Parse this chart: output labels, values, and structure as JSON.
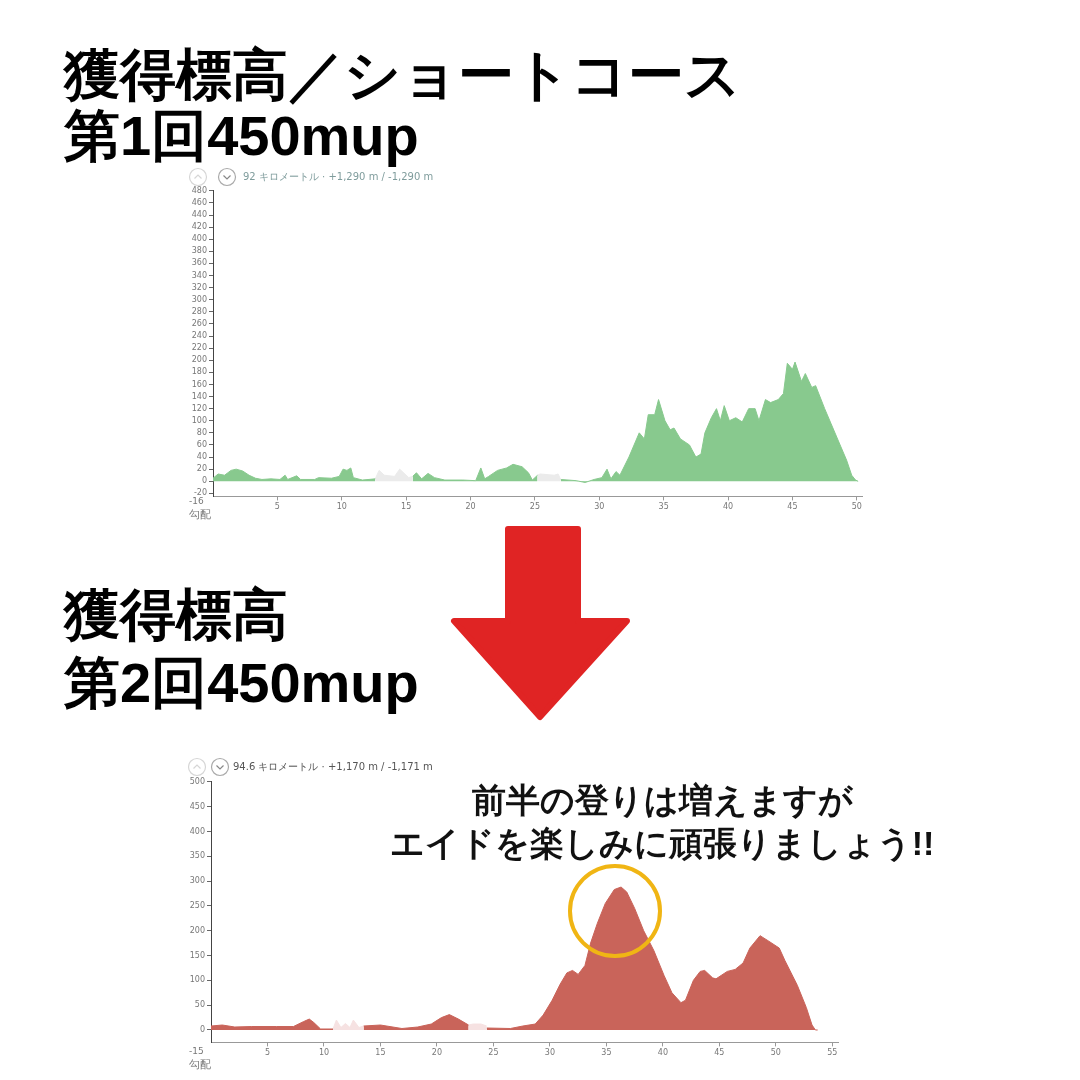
{
  "chart_data": [
    {
      "type": "area",
      "title": "獲得標高／ショートコース",
      "subtitle": "第1回450mup",
      "annotations": [
        "92 キロメートル · +1,290 m / -1,290 m",
        "-16",
        "勾配"
      ],
      "series": [
        {
          "color": "#88c98e",
          "x": [
            0,
            0.4,
            0.9,
            1.4,
            1.8,
            2.3,
            2.8,
            3.3,
            3.8,
            4.5,
            5.2,
            5.6,
            5.8,
            6.5,
            6.8,
            7.9,
            8.2,
            9.2,
            9.8,
            10.1,
            10.4,
            10.7,
            10.9,
            11.6,
            12.6
          ],
          "values": [
            5,
            12,
            10,
            18,
            20,
            17,
            10,
            5,
            3,
            4,
            3,
            10,
            3,
            9,
            3,
            3,
            6,
            5,
            8,
            20,
            18,
            22,
            6,
            2,
            4
          ]
        },
        {
          "color": "#ebebeb",
          "x": [
            12.6,
            12.9,
            13.3,
            14.1,
            14.5,
            15.2,
            15.5
          ],
          "values": [
            4,
            18,
            10,
            8,
            20,
            6,
            8
          ]
        },
        {
          "color": "#88c98e",
          "x": [
            15.5,
            15.8,
            16.2,
            16.7,
            17.2,
            18.0,
            19.4,
            20.4,
            20.8,
            21.1,
            21.4,
            22.1,
            22.8,
            23.3,
            24.0,
            24.5,
            24.8,
            25.2
          ],
          "values": [
            8,
            14,
            4,
            13,
            6,
            2,
            2,
            1,
            22,
            4,
            8,
            18,
            22,
            28,
            24,
            14,
            2,
            10
          ]
        },
        {
          "color": "#ebebeb",
          "x": [
            25.2,
            25.4,
            26.5,
            26.8,
            27.0
          ],
          "values": [
            10,
            12,
            10,
            12,
            3
          ]
        },
        {
          "color": "#88c98e",
          "x": [
            27.0,
            28.2,
            28.9,
            29.6,
            30.2,
            30.6,
            30.9,
            31.3,
            31.6,
            32.3,
            32.8,
            33.1,
            33.5,
            33.8,
            34.3,
            34.6,
            35.1,
            35.5,
            35.8,
            36.3,
            37.0,
            37.5,
            37.9,
            38.2,
            38.7,
            39.1,
            39.4,
            39.7,
            40.1,
            40.6,
            41.1,
            41.6,
            42.1,
            42.4,
            42.9,
            43.3,
            43.9,
            44.3,
            44.6,
            45.0,
            45.2,
            45.7,
            46.0,
            46.5,
            46.8,
            47.5,
            48.0,
            48.7,
            49.2,
            49.6,
            49.9,
            50.1
          ],
          "values": [
            3,
            1,
            -2,
            3,
            6,
            20,
            4,
            16,
            10,
            40,
            65,
            80,
            70,
            110,
            110,
            135,
            100,
            85,
            88,
            70,
            60,
            40,
            45,
            80,
            105,
            120,
            100,
            125,
            100,
            105,
            98,
            120,
            120,
            100,
            135,
            130,
            135,
            145,
            195,
            185,
            197,
            165,
            178,
            155,
            158,
            120,
            95,
            60,
            35,
            10,
            2,
            0
          ]
        }
      ],
      "xlim": [
        0,
        50.4
      ],
      "xticks": [
        5,
        10,
        15,
        20,
        25,
        30,
        35,
        40,
        45,
        50
      ],
      "ylim": [
        -25,
        480
      ],
      "yticks": [
        -20,
        0,
        20,
        40,
        60,
        80,
        100,
        120,
        140,
        160,
        180,
        200,
        220,
        240,
        260,
        280,
        300,
        320,
        340,
        360,
        380,
        400,
        420,
        440,
        460,
        480
      ],
      "grid": false,
      "legend": false
    },
    {
      "type": "area",
      "title": "獲得標高",
      "subtitle": "第2回450mup",
      "annotations": [
        "94.6 キロメートル · +1,170 m / -1,171 m",
        "前半の登りは増えますが",
        "エイドを楽しみに頑張りましょう!!",
        "-15",
        "勾配"
      ],
      "series": [
        {
          "color": "#c9645a",
          "x": [
            0,
            1.0,
            2.1,
            3.6,
            5.8,
            7.3,
            8.2,
            8.7,
            9.1,
            9.7,
            10.8
          ],
          "values": [
            8,
            10,
            6,
            7,
            7,
            7,
            17,
            22,
            15,
            2,
            2
          ]
        },
        {
          "color": "#f6e2e2",
          "x": [
            10.8,
            11.1,
            11.5,
            11.9,
            12.3,
            12.6,
            13.1,
            13.5
          ],
          "values": [
            2,
            20,
            5,
            13,
            5,
            20,
            5,
            8
          ]
        },
        {
          "color": "#c9645a",
          "x": [
            13.5,
            15.0,
            16.9,
            18.3,
            19.5,
            20.4,
            21.1,
            21.9,
            22.8
          ],
          "values": [
            8,
            10,
            3,
            6,
            12,
            25,
            31,
            22,
            10
          ]
        },
        {
          "color": "#f6e2e2",
          "x": [
            22.8,
            23.2,
            23.9,
            24.4
          ],
          "values": [
            10,
            12,
            12,
            8
          ]
        },
        {
          "color": "#c9645a",
          "x": [
            24.4,
            26.5,
            27.6,
            28.7,
            29.4,
            30.2,
            30.9,
            31.5,
            32.0,
            32.5,
            33.1,
            33.6,
            34.2,
            34.9,
            35.7,
            36.3,
            36.8,
            37.5,
            38.3,
            39.2,
            40.1,
            40.8,
            41.6,
            42.0,
            42.7,
            43.3,
            43.7,
            44.4,
            44.7,
            45.7,
            46.4,
            47.1,
            47.7,
            48.6,
            49.3,
            50.3,
            50.8,
            51.9,
            52.7,
            53.2,
            53.5,
            53.7
          ],
          "values": [
            4,
            3,
            8,
            12,
            30,
            60,
            92,
            115,
            120,
            112,
            130,
            175,
            215,
            255,
            283,
            288,
            278,
            245,
            200,
            160,
            110,
            75,
            55,
            60,
            100,
            118,
            120,
            105,
            103,
            118,
            122,
            135,
            165,
            190,
            180,
            165,
            140,
            90,
            45,
            10,
            0,
            0
          ]
        }
      ],
      "xlim": [
        0,
        55.5
      ],
      "xticks": [
        5,
        10,
        15,
        20,
        25,
        30,
        35,
        40,
        45,
        50,
        55
      ],
      "ylim": [
        -25,
        500
      ],
      "yticks": [
        0,
        50,
        100,
        150,
        200,
        250,
        300,
        350,
        400,
        450,
        500
      ],
      "grid": false,
      "legend": false
    }
  ]
}
